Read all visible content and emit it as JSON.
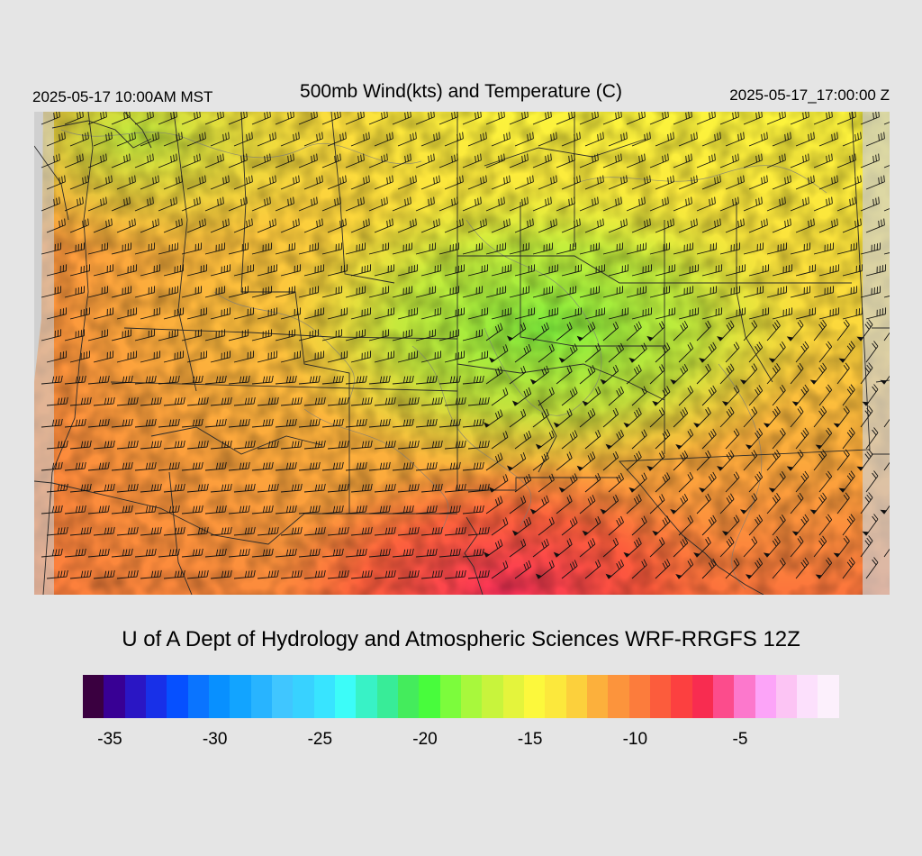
{
  "header": {
    "local_time": "2025-05-17 10:00AM MST",
    "title": "500mb Wind(kts) and Temperature (C)",
    "valid_time": "2025-05-17_17:00:00 Z"
  },
  "credit": "U of A Dept of Hydrology and Atmospheric Sciences WRF-RRGFS 12Z",
  "colorbar": {
    "colors": [
      "#3a0040",
      "#380094",
      "#2a16c4",
      "#1830e8",
      "#0650ff",
      "#0a74ff",
      "#0890ff",
      "#12a4ff",
      "#28b4ff",
      "#40c6ff",
      "#38d2ff",
      "#38e4ff",
      "#3cfcf8",
      "#38f2c6",
      "#38ec98",
      "#44ec5c",
      "#48fc3c",
      "#7cfc3c",
      "#a8f83c",
      "#c8f43c",
      "#e4f43c",
      "#fcf83c",
      "#fce83c",
      "#fcd03c",
      "#fcb03c",
      "#fc943c",
      "#fc7c3c",
      "#fc5c3c",
      "#fc4040",
      "#f82c50",
      "#fc4c8c",
      "#fc78cc",
      "#fca4f8",
      "#fcc4f4",
      "#fce0fc",
      "#fcf0fc"
    ],
    "tick_labels": [
      "-35",
      "-30",
      "-25",
      "-20",
      "-15",
      "-10",
      "-5"
    ],
    "tick_values": [
      -35,
      -30,
      -25,
      -20,
      -15,
      -10,
      -5
    ],
    "min": -36,
    "max": -1
  },
  "map": {
    "field": "500mb Temperature (C)",
    "wind_units": "kts",
    "colors": {
      "background_nodata": "#d0d0d0",
      "state_lines": "#2a2a2a",
      "contour_lines": "#7a7a7a",
      "barbs": "#111111"
    }
  }
}
